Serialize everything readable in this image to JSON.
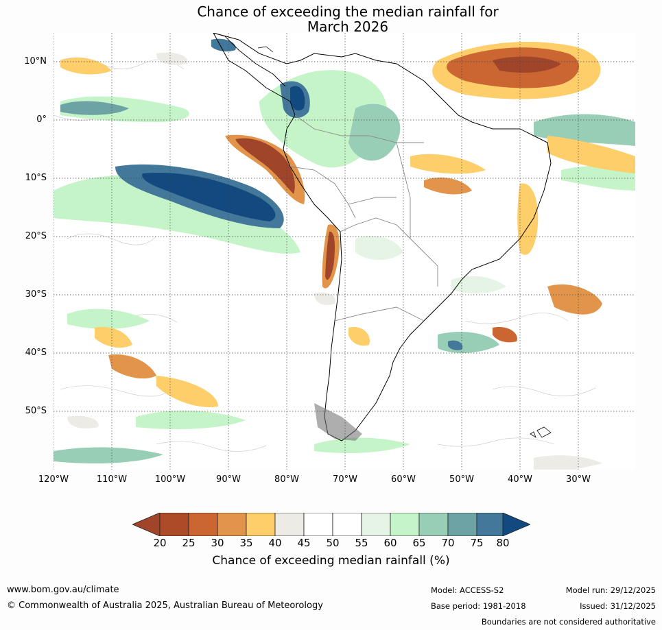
{
  "title": {
    "line1": "Chance of exceeding the median rainfall for",
    "line2": "March 2026"
  },
  "axes": {
    "lat_labels": [
      "10°N",
      "0°",
      "10°S",
      "20°S",
      "30°S",
      "40°S",
      "50°S"
    ],
    "lon_labels": [
      "120°W",
      "110°W",
      "100°W",
      "90°W",
      "80°W",
      "70°W",
      "60°W",
      "50°W",
      "40°W",
      "30°W"
    ]
  },
  "legend": {
    "label": "Chance of exceeding median rainfall (%)",
    "ticks": [
      "20",
      "25",
      "30",
      "35",
      "40",
      "45",
      "50",
      "55",
      "60",
      "65",
      "70",
      "75",
      "80"
    ],
    "colors": [
      "#a0452a",
      "#ad4a27",
      "#cb6633",
      "#e1944a",
      "#fdce6a",
      "#edebe6",
      "#ffffff",
      "#ffffff",
      "#e6f4e6",
      "#c4f4c8",
      "#98cdb6",
      "#6ea3a6",
      "#43789a",
      "#124a80"
    ]
  },
  "footer": {
    "website": "www.bom.gov.au/climate",
    "copyright": "© Commonwealth of Australia 2025, Australian Bureau of Meteorology",
    "model": "Model: ACCESS-S2",
    "base_period": "Base period: 1981-2018",
    "model_run": "Model run: 29/12/2025",
    "issued": "Issued: 31/12/2025",
    "disclaimer": "Boundaries are not considered authoritative"
  }
}
